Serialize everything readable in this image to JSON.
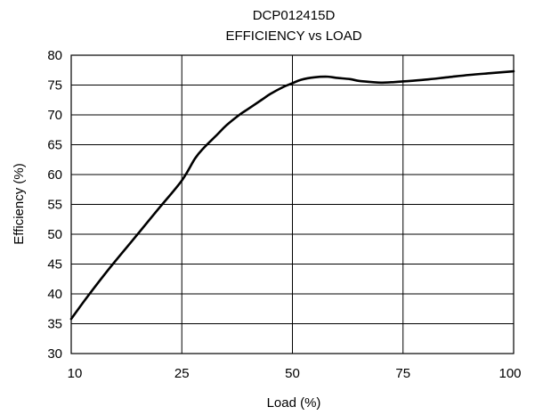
{
  "chart_data": {
    "type": "line",
    "title": "DCP012415D",
    "subtitle": "EFFICIENCY vs LOAD",
    "xlabel": "Load (%)",
    "ylabel": "Efficiency (%)",
    "grid": true,
    "xlim": [
      10,
      100
    ],
    "ylim": [
      30,
      80
    ],
    "x_ticks": [
      10,
      25,
      50,
      75,
      100
    ],
    "y_ticks": [
      30,
      35,
      40,
      45,
      50,
      55,
      60,
      65,
      70,
      75,
      80
    ],
    "colors": {
      "line": "#000000",
      "grid": "#000000",
      "background": "#ffffff"
    },
    "series": [
      {
        "x": [
          10,
          12,
          15,
          18,
          20,
          22,
          25,
          28,
          30,
          33,
          35,
          38,
          40,
          43,
          45,
          48,
          50,
          52,
          55,
          58,
          60,
          63,
          65,
          68,
          70,
          73,
          75,
          80,
          85,
          90,
          95,
          100
        ],
        "values": [
          35.8,
          39.2,
          44.0,
          48.5,
          51.5,
          54.5,
          59.0,
          62.7,
          64.5,
          66.7,
          68.2,
          70.0,
          71.0,
          72.5,
          73.5,
          74.7,
          75.3,
          75.9,
          76.3,
          76.4,
          76.2,
          76.0,
          75.7,
          75.5,
          75.4,
          75.5,
          75.6,
          75.9,
          76.3,
          76.7,
          77.0,
          77.3
        ]
      }
    ]
  }
}
